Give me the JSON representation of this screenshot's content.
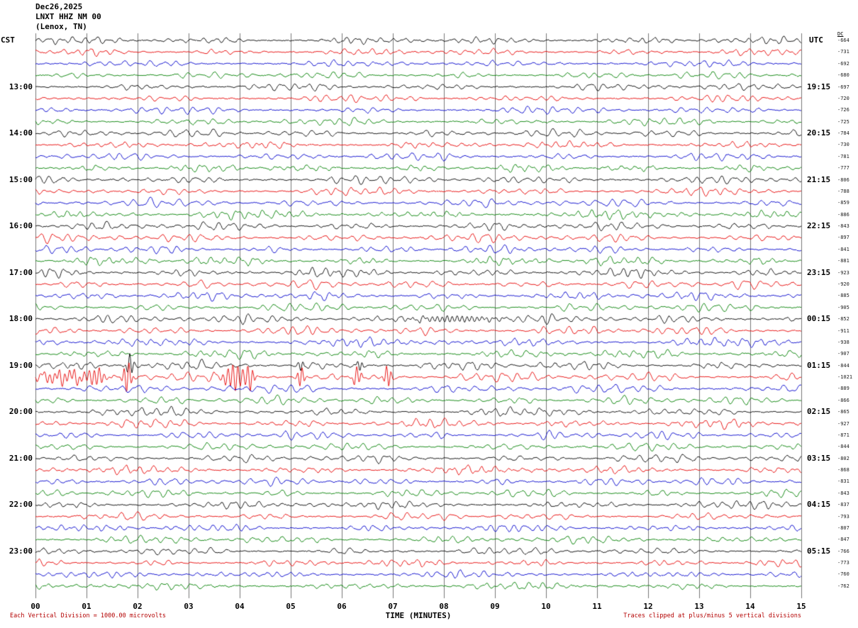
{
  "title": {
    "date": "Dec26,2025",
    "station": "LNXT HHZ NM 00",
    "location": "(Lenox, TN)"
  },
  "axes": {
    "left_label": "CST",
    "right_label": "UTC",
    "dc_label": "DC"
  },
  "footer": {
    "xlabel": "TIME (MINUTES)",
    "note_left": "Each Vertical Division = 1000.00 microvolts",
    "note_right": "Traces clipped at plus/minus 5 vertical divisions"
  },
  "chart_data": {
    "type": "line",
    "subtype": "helicorder-seismogram",
    "title": "LNXT HHZ NM 00 (Lenox, TN) Dec26,2025",
    "xlabel": "TIME (MINUTES)",
    "x_ticks": [
      "00",
      "01",
      "02",
      "03",
      "04",
      "05",
      "06",
      "07",
      "08",
      "09",
      "10",
      "11",
      "12",
      "13",
      "14",
      "15"
    ],
    "x_range_minutes": [
      0,
      15
    ],
    "grid": true,
    "minutes_per_row": 15,
    "colors": {
      "black": "#000000",
      "red": "#e60000",
      "blue": "#0000cc",
      "green": "#008000"
    },
    "rows": [
      {
        "color": "black",
        "dc": -664,
        "cst": "",
        "utc": "",
        "amp": 4.5
      },
      {
        "color": "red",
        "dc": -731,
        "cst": "",
        "utc": "",
        "amp": 4.2
      },
      {
        "color": "blue",
        "dc": -692,
        "cst": "",
        "utc": "",
        "amp": 4.0
      },
      {
        "color": "green",
        "dc": -680,
        "cst": "",
        "utc": "",
        "amp": 4.3
      },
      {
        "color": "black",
        "dc": -697,
        "cst": "13:00",
        "utc": "19:15",
        "amp": 4.6
      },
      {
        "color": "red",
        "dc": -720,
        "cst": "",
        "utc": "",
        "amp": 4.4
      },
      {
        "color": "blue",
        "dc": -726,
        "cst": "",
        "utc": "",
        "amp": 4.5
      },
      {
        "color": "green",
        "dc": -725,
        "cst": "",
        "utc": "",
        "amp": 4.7
      },
      {
        "color": "black",
        "dc": -784,
        "cst": "14:00",
        "utc": "20:15",
        "amp": 5.0
      },
      {
        "color": "red",
        "dc": -730,
        "cst": "",
        "utc": "",
        "amp": 4.6
      },
      {
        "color": "blue",
        "dc": -781,
        "cst": "",
        "utc": "",
        "amp": 4.8
      },
      {
        "color": "green",
        "dc": -777,
        "cst": "",
        "utc": "",
        "amp": 4.9
      },
      {
        "color": "black",
        "dc": -806,
        "cst": "15:00",
        "utc": "21:15",
        "amp": 5.2
      },
      {
        "color": "red",
        "dc": -788,
        "cst": "",
        "utc": "",
        "amp": 5.0
      },
      {
        "color": "blue",
        "dc": -859,
        "cst": "",
        "utc": "",
        "amp": 5.4
      },
      {
        "color": "green",
        "dc": -886,
        "cst": "",
        "utc": "",
        "amp": 5.6
      },
      {
        "color": "black",
        "dc": -843,
        "cst": "16:00",
        "utc": "22:15",
        "amp": 5.4
      },
      {
        "color": "red",
        "dc": -897,
        "cst": "",
        "utc": "",
        "amp": 5.6
      },
      {
        "color": "blue",
        "dc": -841,
        "cst": "",
        "utc": "",
        "amp": 5.2
      },
      {
        "color": "green",
        "dc": -881,
        "cst": "",
        "utc": "",
        "amp": 5.5
      },
      {
        "color": "black",
        "dc": -923,
        "cst": "17:00",
        "utc": "23:15",
        "amp": 5.8
      },
      {
        "color": "red",
        "dc": -920,
        "cst": "",
        "utc": "",
        "amp": 5.6
      },
      {
        "color": "blue",
        "dc": -885,
        "cst": "",
        "utc": "",
        "amp": 5.4
      },
      {
        "color": "green",
        "dc": -905,
        "cst": "",
        "utc": "",
        "amp": 5.5
      },
      {
        "color": "black",
        "dc": -852,
        "cst": "18:00",
        "utc": "00:15",
        "amp": 5.6
      },
      {
        "color": "red",
        "dc": -911,
        "cst": "",
        "utc": "",
        "amp": 5.8
      },
      {
        "color": "blue",
        "dc": -938,
        "cst": "",
        "utc": "",
        "amp": 5.9
      },
      {
        "color": "green",
        "dc": -907,
        "cst": "",
        "utc": "",
        "amp": 5.6
      },
      {
        "color": "black",
        "dc": -844,
        "cst": "19:00",
        "utc": "01:15",
        "amp": 5.8
      },
      {
        "color": "red",
        "dc": -1021,
        "cst": "",
        "utc": "",
        "amp": 6.2
      },
      {
        "color": "blue",
        "dc": -889,
        "cst": "",
        "utc": "",
        "amp": 5.6
      },
      {
        "color": "green",
        "dc": -866,
        "cst": "",
        "utc": "",
        "amp": 5.4
      },
      {
        "color": "black",
        "dc": -865,
        "cst": "20:00",
        "utc": "02:15",
        "amp": 5.5
      },
      {
        "color": "red",
        "dc": -927,
        "cst": "",
        "utc": "",
        "amp": 5.8
      },
      {
        "color": "blue",
        "dc": -871,
        "cst": "",
        "utc": "",
        "amp": 5.4
      },
      {
        "color": "green",
        "dc": -844,
        "cst": "",
        "utc": "",
        "amp": 5.2
      },
      {
        "color": "black",
        "dc": -802,
        "cst": "21:00",
        "utc": "03:15",
        "amp": 5.0
      },
      {
        "color": "red",
        "dc": -868,
        "cst": "",
        "utc": "",
        "amp": 5.3
      },
      {
        "color": "blue",
        "dc": -831,
        "cst": "",
        "utc": "",
        "amp": 5.0
      },
      {
        "color": "green",
        "dc": -843,
        "cst": "",
        "utc": "",
        "amp": 5.1
      },
      {
        "color": "black",
        "dc": -837,
        "cst": "22:00",
        "utc": "04:15",
        "amp": 4.9
      },
      {
        "color": "red",
        "dc": -793,
        "cst": "",
        "utc": "",
        "amp": 4.7
      },
      {
        "color": "blue",
        "dc": -807,
        "cst": "",
        "utc": "",
        "amp": 4.8
      },
      {
        "color": "green",
        "dc": -847,
        "cst": "",
        "utc": "",
        "amp": 5.0
      },
      {
        "color": "black",
        "dc": -766,
        "cst": "23:00",
        "utc": "05:15",
        "amp": 4.6
      },
      {
        "color": "red",
        "dc": -773,
        "cst": "",
        "utc": "",
        "amp": 4.5
      },
      {
        "color": "blue",
        "dc": -760,
        "cst": "",
        "utc": "",
        "amp": 4.4
      },
      {
        "color": "green",
        "dc": -762,
        "cst": "",
        "utc": "",
        "amp": 4.5
      }
    ],
    "events": [
      {
        "row": 24,
        "minute": 8.2,
        "sigma": 0.6,
        "amp": 4
      },
      {
        "row": 28,
        "minute": 1.85,
        "sigma": 0.05,
        "amp": 16
      },
      {
        "row": 28,
        "minute": 5.2,
        "sigma": 0.04,
        "amp": 8
      },
      {
        "row": 28,
        "minute": 6.35,
        "sigma": 0.04,
        "amp": 9
      },
      {
        "row": 29,
        "minute": 0.6,
        "sigma": 0.4,
        "amp": 8
      },
      {
        "row": 29,
        "minute": 1.2,
        "sigma": 0.1,
        "amp": 10
      },
      {
        "row": 29,
        "minute": 1.8,
        "sigma": 0.06,
        "amp": 22
      },
      {
        "row": 29,
        "minute": 3.9,
        "sigma": 0.15,
        "amp": 18
      },
      {
        "row": 29,
        "minute": 4.2,
        "sigma": 0.06,
        "amp": 16
      },
      {
        "row": 29,
        "minute": 5.2,
        "sigma": 0.05,
        "amp": 15
      },
      {
        "row": 29,
        "minute": 6.3,
        "sigma": 0.06,
        "amp": 13
      },
      {
        "row": 29,
        "minute": 6.9,
        "sigma": 0.05,
        "amp": 17
      }
    ],
    "clip_divisions": 5,
    "microvolts_per_division": "1000.00"
  }
}
